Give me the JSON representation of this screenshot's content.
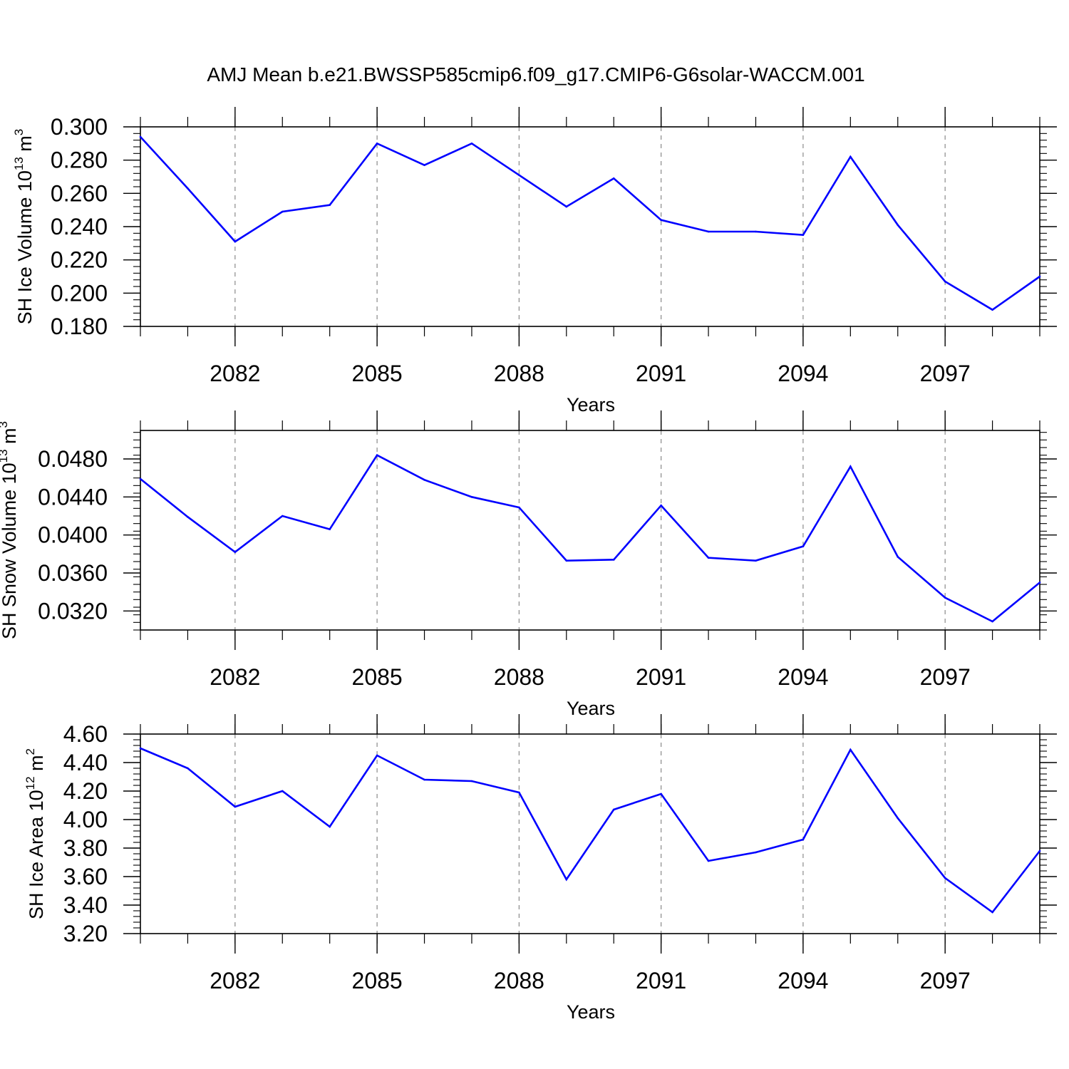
{
  "title": "AMJ Mean b.e21.BWSSP585cmip6.f09_g17.CMIP6-G6solar-WACCM.001",
  "chart_data": [
    {
      "type": "line",
      "ylabel": "SH Ice Volume 10",
      "ylabel_exp": "13",
      "ylabel_unit": " m",
      "ylabel_unit_exp": "3",
      "xlabel": "Years",
      "xlim": [
        2080,
        2099
      ],
      "ylim": [
        0.18,
        0.3
      ],
      "y_ticks": [
        0.18,
        0.2,
        0.22,
        0.24,
        0.26,
        0.28,
        0.3
      ],
      "y_tick_labels": [
        "0.180",
        "0.200",
        "0.220",
        "0.240",
        "0.260",
        "0.280",
        "0.300"
      ],
      "x_ticks": [
        2082,
        2085,
        2088,
        2091,
        2094,
        2097
      ],
      "x_tick_labels": [
        "2082",
        "2085",
        "2088",
        "2091",
        "2094",
        "2097"
      ],
      "grid": "vertical dashed at major x ticks",
      "line_color": "#0000ff",
      "x": [
        2080,
        2081,
        2082,
        2083,
        2084,
        2085,
        2086,
        2087,
        2088,
        2089,
        2090,
        2091,
        2092,
        2093,
        2094,
        2095,
        2096,
        2097,
        2098,
        2099
      ],
      "values": [
        0.294,
        0.263,
        0.231,
        0.249,
        0.253,
        0.29,
        0.277,
        0.29,
        0.271,
        0.252,
        0.269,
        0.244,
        0.237,
        0.237,
        0.235,
        0.282,
        0.241,
        0.207,
        0.19,
        0.21
      ]
    },
    {
      "type": "line",
      "ylabel": "SH Snow Volume 10",
      "ylabel_exp": "13",
      "ylabel_unit": " m",
      "ylabel_unit_exp": "3",
      "xlabel": "Years",
      "xlim": [
        2080,
        2099
      ],
      "ylim": [
        0.03,
        0.051
      ],
      "y_ticks": [
        0.032,
        0.036,
        0.04,
        0.044,
        0.048
      ],
      "y_tick_labels": [
        "0.0320",
        "0.0360",
        "0.0400",
        "0.0440",
        "0.0480"
      ],
      "x_ticks": [
        2082,
        2085,
        2088,
        2091,
        2094,
        2097
      ],
      "x_tick_labels": [
        "2082",
        "2085",
        "2088",
        "2091",
        "2094",
        "2097"
      ],
      "grid": "vertical dashed at major x ticks",
      "line_color": "#0000ff",
      "x": [
        2080,
        2081,
        2082,
        2083,
        2084,
        2085,
        2086,
        2087,
        2088,
        2089,
        2090,
        2091,
        2092,
        2093,
        2094,
        2095,
        2096,
        2097,
        2098,
        2099
      ],
      "values": [
        0.0459,
        0.0419,
        0.0382,
        0.042,
        0.0406,
        0.0484,
        0.0458,
        0.044,
        0.0429,
        0.0373,
        0.0374,
        0.0431,
        0.0376,
        0.0373,
        0.0388,
        0.0472,
        0.0377,
        0.0334,
        0.0309,
        0.035
      ]
    },
    {
      "type": "line",
      "ylabel": "SH Ice Area 10",
      "ylabel_exp": "12",
      "ylabel_unit": " m",
      "ylabel_unit_exp": "2",
      "xlabel": "Years",
      "xlim": [
        2080,
        2099
      ],
      "ylim": [
        3.2,
        4.6
      ],
      "y_ticks": [
        3.2,
        3.4,
        3.6,
        3.8,
        4.0,
        4.2,
        4.4,
        4.6
      ],
      "y_tick_labels": [
        "3.20",
        "3.40",
        "3.60",
        "3.80",
        "4.00",
        "4.20",
        "4.40",
        "4.60"
      ],
      "x_ticks": [
        2082,
        2085,
        2088,
        2091,
        2094,
        2097
      ],
      "x_tick_labels": [
        "2082",
        "2085",
        "2088",
        "2091",
        "2094",
        "2097"
      ],
      "grid": "vertical dashed at major x ticks",
      "line_color": "#0000ff",
      "x": [
        2080,
        2081,
        2082,
        2083,
        2084,
        2085,
        2086,
        2087,
        2088,
        2089,
        2090,
        2091,
        2092,
        2093,
        2094,
        2095,
        2096,
        2097,
        2098,
        2099
      ],
      "values": [
        4.5,
        4.36,
        4.09,
        4.2,
        3.95,
        4.45,
        4.28,
        4.27,
        4.19,
        3.58,
        4.07,
        4.18,
        3.71,
        3.77,
        3.86,
        4.49,
        4.01,
        3.59,
        3.35,
        3.78
      ]
    }
  ]
}
